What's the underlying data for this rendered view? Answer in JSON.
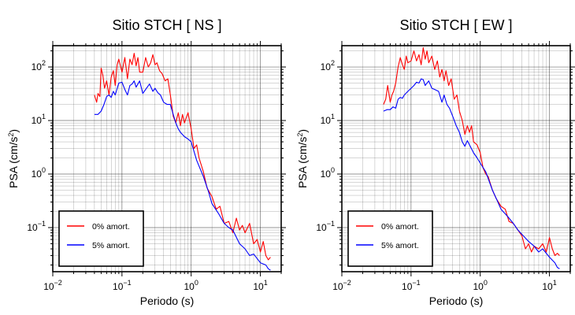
{
  "chart_data": [
    {
      "type": "line",
      "title": "Sitio STCH [ NS ]",
      "xlabel": "Periodo (s)",
      "ylabel": "PSA (cm/s",
      "ylabel_exponent": "2",
      "ylabel_close": ")",
      "x_scale": "log",
      "y_scale": "log",
      "xlim": [
        0.01,
        20
      ],
      "ylim": [
        0.015,
        250
      ],
      "xticks": [
        {
          "value": 0.01,
          "base": "10",
          "exp": "−2"
        },
        {
          "value": 0.1,
          "base": "10",
          "exp": "−1"
        },
        {
          "value": 1,
          "base": "10",
          "exp": "0"
        },
        {
          "value": 10,
          "base": "10",
          "exp": "1"
        }
      ],
      "yticks": [
        {
          "value": 0.1,
          "base": "10",
          "exp": "−1"
        },
        {
          "value": 1,
          "base": "10",
          "exp": "0"
        },
        {
          "value": 10,
          "base": "10",
          "exp": "1"
        },
        {
          "value": 100,
          "base": "10",
          "exp": "2"
        }
      ],
      "grid": true,
      "legend_position": "bottom-left",
      "series": [
        {
          "name": "0% amort.",
          "color": "#ff0000",
          "x": [
            0.04,
            0.043,
            0.045,
            0.048,
            0.05,
            0.053,
            0.056,
            0.06,
            0.065,
            0.07,
            0.075,
            0.08,
            0.085,
            0.09,
            0.1,
            0.11,
            0.12,
            0.13,
            0.14,
            0.15,
            0.16,
            0.17,
            0.18,
            0.2,
            0.22,
            0.24,
            0.26,
            0.28,
            0.3,
            0.32,
            0.35,
            0.38,
            0.42,
            0.46,
            0.5,
            0.55,
            0.6,
            0.65,
            0.7,
            0.75,
            0.8,
            0.9,
            1.0,
            1.1,
            1.2,
            1.3,
            1.5,
            1.7,
            2.0,
            2.3,
            2.6,
            3.0,
            3.5,
            4.0,
            4.5,
            5.0,
            5.5,
            6.0,
            7.0,
            8.0,
            9.0,
            10.0,
            11.0,
            12.0,
            13.0,
            14.0
          ],
          "y": [
            30,
            22,
            32,
            28,
            95,
            70,
            40,
            55,
            30,
            65,
            85,
            45,
            110,
            140,
            80,
            150,
            60,
            140,
            110,
            180,
            105,
            150,
            80,
            80,
            150,
            100,
            120,
            170,
            110,
            120,
            85,
            75,
            55,
            60,
            30,
            12,
            9,
            14,
            8,
            13,
            9,
            14,
            7,
            3,
            3.5,
            2.0,
            1.1,
            0.55,
            0.38,
            0.22,
            0.25,
            0.12,
            0.13,
            0.08,
            0.15,
            0.09,
            0.11,
            0.08,
            0.12,
            0.05,
            0.06,
            0.035,
            0.055,
            0.03,
            0.025,
            0.028
          ]
        },
        {
          "name": "5% amort.",
          "color": "#0000ff",
          "x": [
            0.04,
            0.045,
            0.05,
            0.055,
            0.06,
            0.065,
            0.07,
            0.075,
            0.08,
            0.09,
            0.1,
            0.11,
            0.12,
            0.13,
            0.14,
            0.15,
            0.16,
            0.18,
            0.2,
            0.22,
            0.25,
            0.28,
            0.3,
            0.33,
            0.36,
            0.4,
            0.45,
            0.5,
            0.55,
            0.6,
            0.65,
            0.7,
            0.8,
            0.9,
            1.0,
            1.2,
            1.5,
            1.8,
            2.0,
            2.5,
            3.0,
            3.5,
            4.0,
            5.0,
            6.0,
            7.0,
            8.0,
            10.0,
            12.0,
            13.0,
            14.0
          ],
          "y": [
            13,
            13,
            15,
            20,
            28,
            30,
            27,
            35,
            30,
            50,
            52,
            38,
            30,
            45,
            48,
            55,
            42,
            55,
            32,
            38,
            48,
            35,
            40,
            33,
            30,
            22,
            20,
            20,
            13,
            9,
            7,
            6,
            5,
            4.5,
            4.0,
            1.8,
            0.9,
            0.45,
            0.28,
            0.18,
            0.12,
            0.1,
            0.09,
            0.05,
            0.04,
            0.03,
            0.032,
            0.022,
            0.02,
            0.017,
            0.016
          ]
        }
      ]
    },
    {
      "type": "line",
      "title": "Sitio STCH [ EW ]",
      "xlabel": "Periodo (s)",
      "ylabel": "PSA (cm/s",
      "ylabel_exponent": "2",
      "ylabel_close": ")",
      "x_scale": "log",
      "y_scale": "log",
      "xlim": [
        0.01,
        20
      ],
      "ylim": [
        0.015,
        250
      ],
      "xticks": [
        {
          "value": 0.01,
          "base": "10",
          "exp": "−2"
        },
        {
          "value": 0.1,
          "base": "10",
          "exp": "−1"
        },
        {
          "value": 1,
          "base": "10",
          "exp": "0"
        },
        {
          "value": 10,
          "base": "10",
          "exp": "1"
        }
      ],
      "yticks": [
        {
          "value": 0.1,
          "base": "10",
          "exp": "−1"
        },
        {
          "value": 1,
          "base": "10",
          "exp": "0"
        },
        {
          "value": 10,
          "base": "10",
          "exp": "1"
        },
        {
          "value": 100,
          "base": "10",
          "exp": "2"
        }
      ],
      "grid": true,
      "legend_position": "bottom-left",
      "series": [
        {
          "name": "0% amort.",
          "color": "#ff0000",
          "x": [
            0.04,
            0.043,
            0.046,
            0.05,
            0.053,
            0.056,
            0.06,
            0.065,
            0.07,
            0.075,
            0.08,
            0.085,
            0.09,
            0.1,
            0.11,
            0.12,
            0.13,
            0.14,
            0.15,
            0.16,
            0.17,
            0.18,
            0.2,
            0.22,
            0.24,
            0.26,
            0.28,
            0.3,
            0.32,
            0.35,
            0.38,
            0.42,
            0.46,
            0.5,
            0.55,
            0.6,
            0.65,
            0.7,
            0.75,
            0.8,
            0.9,
            1.0,
            1.1,
            1.2,
            1.3,
            1.5,
            1.7,
            2.0,
            2.3,
            2.6,
            3.0,
            3.5,
            4.0,
            4.5,
            5.0,
            5.5,
            6.0,
            7.0,
            8.0,
            9.0,
            10.0,
            11.0,
            12.0,
            13.0,
            14.0
          ],
          "y": [
            20,
            25,
            45,
            22,
            30,
            35,
            50,
            100,
            150,
            110,
            90,
            160,
            120,
            130,
            200,
            130,
            170,
            110,
            230,
            140,
            200,
            120,
            160,
            90,
            130,
            65,
            90,
            55,
            85,
            45,
            60,
            25,
            30,
            15,
            10,
            5.5,
            8,
            6,
            8,
            4,
            3.5,
            2.5,
            1.3,
            1.0,
            0.9,
            0.5,
            0.35,
            0.25,
            0.22,
            0.13,
            0.12,
            0.09,
            0.07,
            0.04,
            0.05,
            0.035,
            0.045,
            0.04,
            0.05,
            0.035,
            0.065,
            0.04,
            0.03,
            0.033,
            0.03
          ]
        },
        {
          "name": "5% amort.",
          "color": "#0000ff",
          "x": [
            0.04,
            0.045,
            0.05,
            0.055,
            0.06,
            0.065,
            0.07,
            0.075,
            0.08,
            0.09,
            0.1,
            0.11,
            0.12,
            0.13,
            0.14,
            0.15,
            0.16,
            0.18,
            0.2,
            0.22,
            0.25,
            0.28,
            0.3,
            0.33,
            0.36,
            0.4,
            0.45,
            0.5,
            0.55,
            0.6,
            0.65,
            0.7,
            0.8,
            0.9,
            1.0,
            1.2,
            1.5,
            1.8,
            2.0,
            2.5,
            3.0,
            3.5,
            4.0,
            5.0,
            6.0,
            7.0,
            8.0,
            10.0,
            12.0,
            13.0,
            14.0
          ],
          "y": [
            15,
            16,
            16,
            18,
            17,
            25,
            27,
            26,
            30,
            35,
            40,
            45,
            52,
            50,
            60,
            58,
            45,
            55,
            40,
            38,
            35,
            22,
            30,
            20,
            17,
            12,
            8,
            6,
            4,
            3.3,
            4.2,
            3.5,
            2.5,
            2.0,
            1.6,
            1.1,
            0.5,
            0.3,
            0.22,
            0.16,
            0.12,
            0.09,
            0.075,
            0.055,
            0.045,
            0.035,
            0.04,
            0.028,
            0.022,
            0.018,
            0.017
          ]
        }
      ]
    }
  ]
}
